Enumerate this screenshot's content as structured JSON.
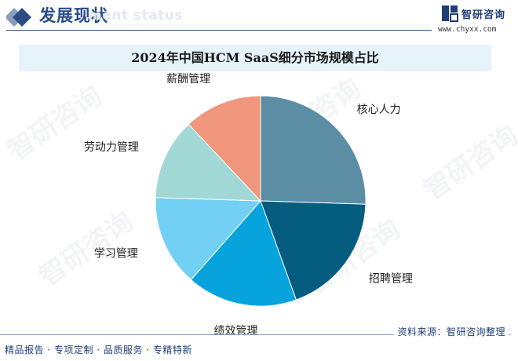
{
  "header": {
    "title": "发展现状",
    "subtitle": "ment status",
    "brand_name": "智研咨询",
    "brand_url": "www.chyxx.com"
  },
  "watermark": "智研咨询",
  "footer": {
    "slogan": "精品报告 · 专项定制 · 品质服务 · 专精特新",
    "source": "资料来源：智研咨询整理"
  },
  "colors": {
    "brand": "#2a4d86",
    "title_band": "#e6f3fb"
  },
  "chart_data": {
    "type": "pie",
    "title": "2024年中国HCM SaaS细分市场规模占比",
    "start_angle_deg": 0,
    "direction": "clockwise",
    "legend": "none",
    "slices": [
      {
        "label": "核心人力",
        "value": 25.5,
        "color": "#5b8ea5"
      },
      {
        "label": "招聘管理",
        "value": 19.0,
        "color": "#045c7f"
      },
      {
        "label": "绩效管理",
        "value": 17.0,
        "color": "#06a3dc"
      },
      {
        "label": "学习管理",
        "value": 14.0,
        "color": "#72d0f4"
      },
      {
        "label": "劳动力管理",
        "value": 12.5,
        "color": "#a2d9d7"
      },
      {
        "label": "薪酬管理",
        "value": 12.0,
        "color": "#ef967d"
      }
    ]
  }
}
